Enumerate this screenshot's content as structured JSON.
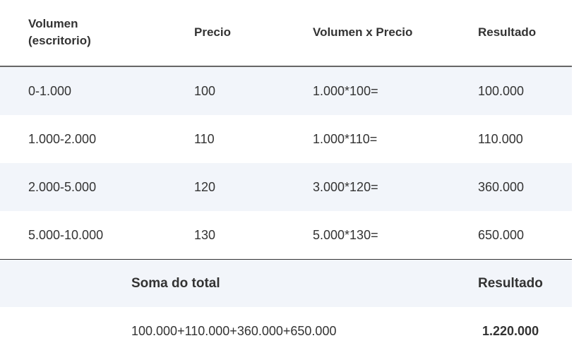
{
  "table": {
    "headers": [
      "Volumen\n(escritorio)",
      "Precio",
      "Volumen x Precio",
      "Resultado"
    ],
    "header_volume_line1": "Volumen",
    "header_volume_line2": "(escritorio)",
    "rows": [
      [
        "0-1.000",
        "100",
        "1.000*100=",
        "100.000"
      ],
      [
        "1.000-2.000",
        "110",
        "1.000*110=",
        "110.000"
      ],
      [
        "2.000-5.000",
        "120",
        "3.000*120=",
        "360.000"
      ],
      [
        "5.000-10.000",
        "130",
        "5.000*130=",
        "650.000"
      ]
    ],
    "summary": {
      "label": "Soma do total",
      "result_label": "Resultado",
      "formula": "100.000+110.000+360.000+650.000",
      "total": "1.220.000"
    }
  },
  "colors": {
    "row_shade": "#f2f5fa",
    "text": "#333333",
    "rule": "#666666"
  }
}
